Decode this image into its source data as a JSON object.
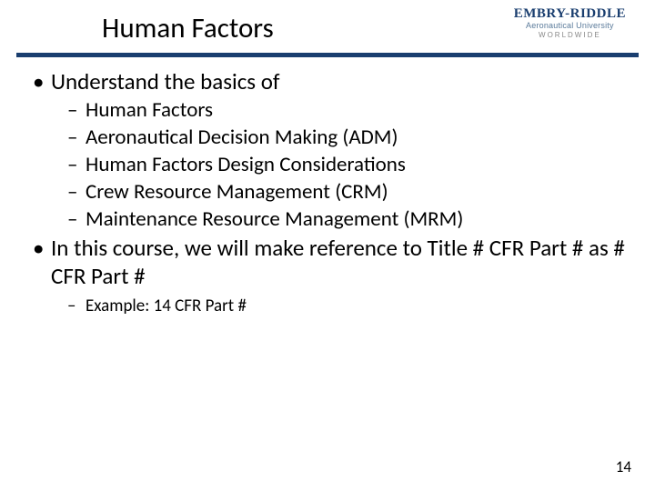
{
  "header": {
    "title": "Human Factors",
    "logo": {
      "main": "EMBRY-RIDDLE",
      "sub": "Aeronautical University",
      "ww": "WORLDWIDE"
    },
    "rule_color": "#1a3e6f"
  },
  "content": {
    "items": [
      {
        "level": 1,
        "text": "Understand the basics of"
      },
      {
        "level": 2,
        "text": "Human Factors"
      },
      {
        "level": 2,
        "text": "Aeronautical Decision Making (ADM)"
      },
      {
        "level": 2,
        "text": "Human Factors Design Considerations"
      },
      {
        "level": 2,
        "text": "Crew Resource Management (CRM)"
      },
      {
        "level": 2,
        "text": "Maintenance Resource Management (MRM)"
      },
      {
        "level": 1,
        "text": "In this course, we will make reference to Title # CFR Part # as # CFR Part #"
      },
      {
        "level": 2,
        "small": true,
        "text": "Example:  14 CFR Part #"
      }
    ]
  },
  "page_number": "14",
  "styles": {
    "background": "#ffffff",
    "text_color": "#000000",
    "title_fontsize": 31,
    "l1_fontsize": 25,
    "l2_fontsize": 23,
    "l2_small_fontsize": 19,
    "font_family": "Calibri"
  }
}
